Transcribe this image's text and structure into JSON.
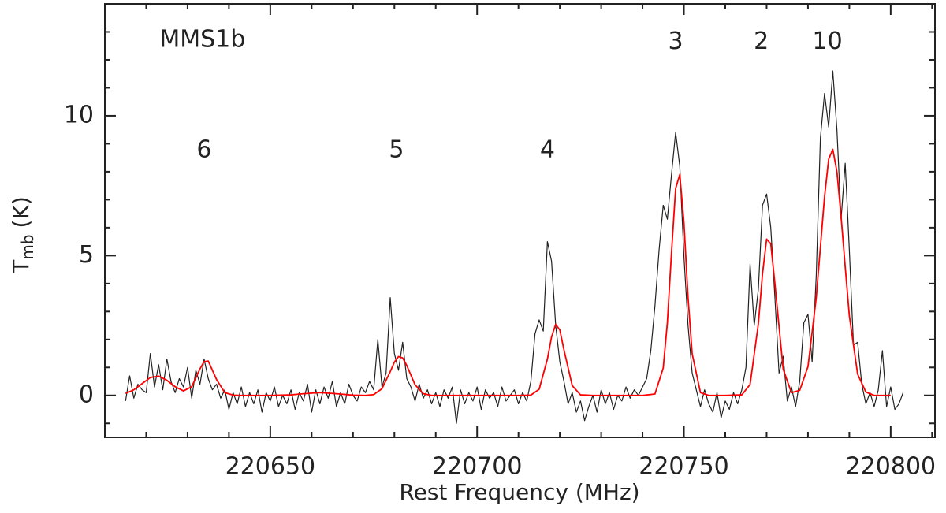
{
  "chart_data": {
    "type": "line",
    "x_label": "Rest Frequency (MHz)",
    "y_label": {
      "main": "T",
      "sub": "mb",
      "unit": "(K)"
    },
    "xlim": [
      220610,
      220810.7
    ],
    "ylim": [
      -1.5,
      14
    ],
    "xticks": [
      220650,
      220700,
      220750,
      220800
    ],
    "yticks": [
      0,
      5,
      10
    ],
    "xminor": [
      220620,
      220630,
      220640,
      220660,
      220670,
      220680,
      220690,
      220710,
      220720,
      220730,
      220740,
      220760,
      220770,
      220780,
      220790,
      220810
    ],
    "yminor": [
      -1,
      1,
      2,
      3,
      4,
      6,
      7,
      8,
      9,
      11,
      12,
      13
    ],
    "annotations": [
      {
        "text": "MMS1b",
        "x": 220633.6,
        "y": 12.7
      },
      {
        "text": "6",
        "x": 220634,
        "y": 8.76
      },
      {
        "text": "5",
        "x": 220680.5,
        "y": 8.76
      },
      {
        "text": "4",
        "x": 220717,
        "y": 8.76
      },
      {
        "text": "3",
        "x": 220748,
        "y": 12.64
      },
      {
        "text": "2",
        "x": 220768.7,
        "y": 12.64
      },
      {
        "text": "10",
        "x": 220784.7,
        "y": 12.64
      }
    ],
    "series": [
      {
        "color": "#222222",
        "x": [
          220615,
          220616,
          220617,
          220618,
          220619,
          220620,
          220621,
          220622,
          220623,
          220624,
          220625,
          220626,
          220627,
          220628,
          220629,
          220630,
          220631,
          220632,
          220633,
          220634,
          220635,
          220636,
          220637,
          220638,
          220639,
          220640,
          220641,
          220642,
          220643,
          220644,
          220645,
          220646,
          220647,
          220648,
          220649,
          220650,
          220651,
          220652,
          220653,
          220654,
          220655,
          220656,
          220657,
          220658,
          220659,
          220660,
          220661,
          220662,
          220663,
          220664,
          220665,
          220666,
          220667,
          220668,
          220669,
          220670,
          220671,
          220672,
          220673,
          220674,
          220675,
          220676,
          220677,
          220678,
          220679,
          220680,
          220681,
          220682,
          220683,
          220684,
          220685,
          220686,
          220687,
          220688,
          220689,
          220690,
          220691,
          220692,
          220693,
          220694,
          220695,
          220696,
          220697,
          220698,
          220699,
          220700,
          220701,
          220702,
          220703,
          220704,
          220705,
          220706,
          220707,
          220708,
          220709,
          220710,
          220711,
          220712,
          220713,
          220714,
          220715,
          220716,
          220717,
          220718,
          220719,
          220720,
          220721,
          220722,
          220723,
          220724,
          220725,
          220726,
          220727,
          220728,
          220729,
          220730,
          220731,
          220732,
          220733,
          220734,
          220735,
          220736,
          220737,
          220738,
          220739,
          220740,
          220741,
          220742,
          220743,
          220744,
          220745,
          220746,
          220747,
          220748,
          220749,
          220750,
          220751,
          220752,
          220753,
          220754,
          220755,
          220756,
          220757,
          220758,
          220759,
          220760,
          220761,
          220762,
          220763,
          220764,
          220765,
          220766,
          220767,
          220768,
          220769,
          220770,
          220771,
          220772,
          220773,
          220774,
          220775,
          220776,
          220777,
          220778,
          220779,
          220780,
          220781,
          220782,
          220783,
          220784,
          220785,
          220786,
          220787,
          220788,
          220789,
          220790,
          220791,
          220792,
          220793,
          220794,
          220795,
          220796,
          220797,
          220798,
          220799,
          220800,
          220801,
          220802,
          220803
        ],
        "values": [
          -0.2,
          0.7,
          -0.1,
          0.4,
          0.2,
          0.1,
          1.5,
          0.3,
          1.1,
          0.2,
          1.3,
          0.5,
          0.1,
          0.6,
          0.3,
          1.0,
          -0.1,
          0.9,
          0.4,
          1.3,
          0.6,
          0.2,
          0.4,
          -0.1,
          0.2,
          -0.5,
          0.1,
          -0.3,
          0.3,
          -0.4,
          0.1,
          -0.3,
          0.2,
          -0.6,
          0.1,
          -0.2,
          0.3,
          -0.4,
          0.0,
          -0.3,
          0.2,
          -0.5,
          0.1,
          -0.2,
          0.4,
          -0.6,
          0.2,
          -0.3,
          0.3,
          -0.1,
          0.5,
          -0.4,
          0.1,
          -0.3,
          0.4,
          0.0,
          -0.2,
          0.3,
          0.1,
          0.5,
          0.2,
          2.0,
          0.3,
          0.8,
          3.5,
          1.5,
          0.9,
          1.9,
          0.6,
          0.3,
          -0.2,
          0.4,
          -0.1,
          0.2,
          -0.3,
          0.1,
          -0.4,
          0.2,
          -0.1,
          0.3,
          -1.0,
          0.2,
          -0.3,
          0.1,
          -0.2,
          0.3,
          -0.5,
          0.2,
          -0.1,
          0.1,
          -0.4,
          0.3,
          -0.2,
          0.0,
          0.2,
          -0.3,
          0.1,
          -0.2,
          0.5,
          2.2,
          2.7,
          2.3,
          5.5,
          4.8,
          2.5,
          1.2,
          0.5,
          -0.3,
          0.1,
          -0.6,
          -0.2,
          -0.9,
          -0.4,
          0.0,
          -0.6,
          0.2,
          -0.3,
          0.1,
          -0.5,
          0.0,
          -0.2,
          0.3,
          -0.1,
          0.2,
          0.0,
          0.3,
          0.6,
          1.6,
          3.2,
          5.2,
          6.8,
          6.3,
          7.9,
          9.4,
          8.2,
          5.0,
          2.5,
          0.8,
          0.2,
          -0.4,
          0.2,
          -0.3,
          -0.6,
          0.1,
          -0.8,
          -0.2,
          -0.5,
          0.1,
          -0.3,
          0.2,
          1.0,
          4.7,
          2.5,
          3.8,
          6.8,
          7.2,
          6.0,
          3.5,
          0.8,
          1.4,
          -0.2,
          0.3,
          -0.4,
          0.5,
          2.6,
          2.9,
          1.2,
          4.3,
          9.2,
          10.8,
          9.6,
          11.6,
          9.5,
          6.3,
          8.3,
          5.2,
          1.8,
          1.9,
          0.4,
          -0.3,
          0.1,
          -0.4,
          0.2,
          1.6,
          -0.4,
          0.3,
          -0.5,
          -0.3,
          0.1
        ]
      },
      {
        "color": "#ff0000",
        "x": [
          220615,
          220617,
          220619,
          220621,
          220623,
          220625,
          220627,
          220629,
          220631,
          220633,
          220634,
          220635,
          220637,
          220639,
          220641,
          220643,
          220645,
          220650,
          220655,
          220658,
          220662,
          220666,
          220670,
          220673,
          220675,
          220677,
          220679,
          220680,
          220681,
          220682,
          220683,
          220685,
          220687,
          220689,
          220692,
          220700,
          220710,
          220713,
          220715,
          220717,
          220718,
          220719,
          220720,
          220721,
          220723,
          220725,
          220728,
          220740,
          220743,
          220745,
          220746,
          220747,
          220748,
          220749,
          220750,
          220751,
          220752,
          220754,
          220756,
          220760,
          220764,
          220766,
          220768,
          220769,
          220770,
          220771,
          220772,
          220774,
          220776,
          220778,
          220780,
          220782,
          220783,
          220784,
          220785,
          220786,
          220787,
          220788,
          220789,
          220790,
          220792,
          220794,
          220796,
          220800
        ],
        "values": [
          0.07,
          0.2,
          0.42,
          0.64,
          0.69,
          0.54,
          0.31,
          0.16,
          0.31,
          0.95,
          1.21,
          1.23,
          0.57,
          0.1,
          0.01,
          0,
          0,
          0,
          0.02,
          0.06,
          0.1,
          0.06,
          0.01,
          0,
          0.03,
          0.24,
          0.85,
          1.19,
          1.39,
          1.34,
          1.07,
          0.38,
          0.06,
          0,
          0,
          0,
          0,
          0.01,
          0.22,
          1.3,
          2.09,
          2.54,
          2.34,
          1.63,
          0.35,
          0.02,
          0,
          0,
          0.05,
          0.98,
          2.6,
          5.1,
          7.4,
          7.9,
          6.2,
          3.5,
          1.49,
          0.1,
          0,
          0,
          0.02,
          0.39,
          2.56,
          4.35,
          5.59,
          5.42,
          4.0,
          0.94,
          0.1,
          0.18,
          1.03,
          3.5,
          5.3,
          7.1,
          8.45,
          8.8,
          8.0,
          6.4,
          4.6,
          2.85,
          0.76,
          0.12,
          0,
          0
        ]
      }
    ]
  }
}
